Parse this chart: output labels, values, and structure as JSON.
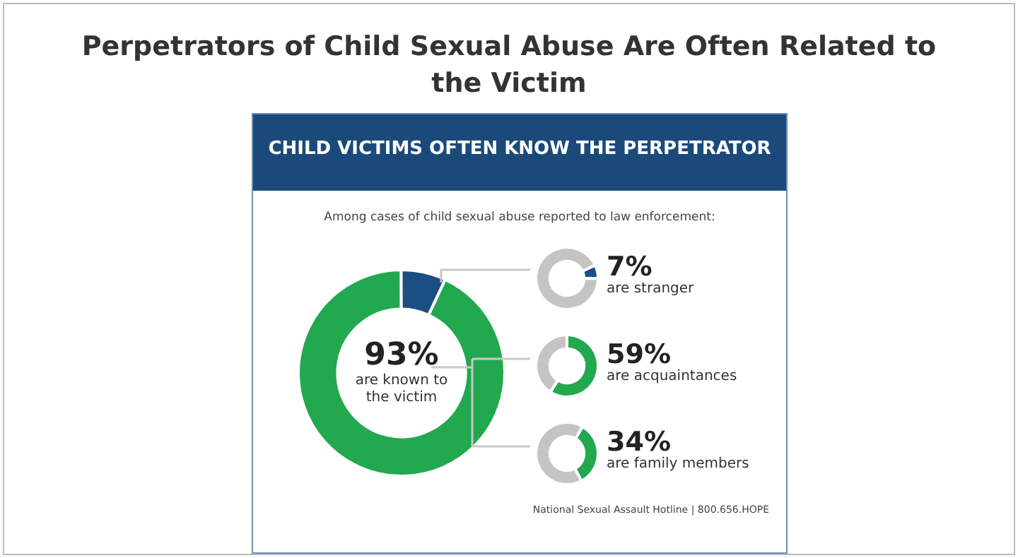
{
  "chart_data": [
    {
      "type": "donut",
      "title": "Perpetrators of Child Sexual Abuse Are Often Related to the Victim",
      "subtitle": "CHILD VICTIMS OFTEN KNOW THE PERPETRATOR",
      "annotations": [
        "Among cases of child sexual abuse reported to law enforcement:",
        "National Sexual Assault Hotline | 800.656.HOPE"
      ],
      "categories": [
        "are known to the victim",
        null
      ],
      "values": [
        93,
        7
      ],
      "colors": [
        "#22a84f",
        "#1b4f82"
      ],
      "value_labels": [
        "93%",
        null
      ]
    },
    {
      "type": "donut",
      "categories": [
        "are stranger",
        null
      ],
      "values": [
        7,
        93
      ],
      "colors": [
        "#1b4f82",
        "#c4c4c4"
      ],
      "value_labels": [
        "7%",
        null
      ]
    },
    {
      "type": "donut",
      "categories": [
        "are acquaintances",
        null
      ],
      "values": [
        59,
        41
      ],
      "colors": [
        "#22a84f",
        "#c4c4c4"
      ],
      "value_labels": [
        "59%",
        null
      ]
    },
    {
      "type": "donut",
      "categories": [
        "are family members",
        null
      ],
      "values": [
        34,
        66
      ],
      "colors": [
        "#22a84f",
        "#c4c4c4"
      ],
      "value_labels": [
        "34%",
        null
      ]
    }
  ]
}
